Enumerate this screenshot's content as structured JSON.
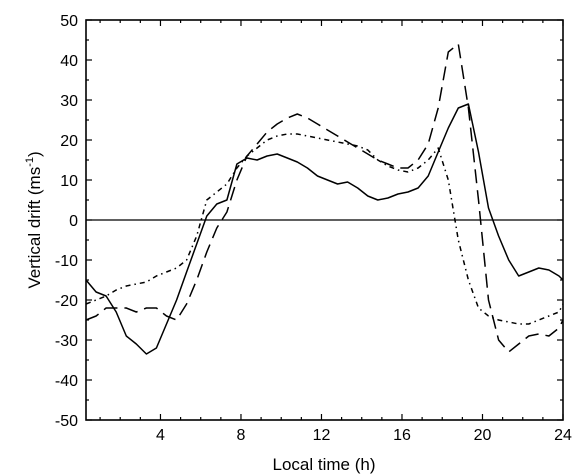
{
  "chart_data": {
    "type": "line",
    "xlabel": "Local time (h)",
    "ylabel_main": "Vertical drift (ms",
    "ylabel_sup": "-1",
    "ylabel_close": ")",
    "xlim": [
      0.3,
      24
    ],
    "ylim": [
      -50,
      50
    ],
    "x_ticks": [
      4,
      8,
      12,
      16,
      20,
      24
    ],
    "x_minor_step": 1,
    "y_ticks": [
      -50,
      -40,
      -30,
      -20,
      -10,
      0,
      10,
      20,
      30,
      40,
      50
    ],
    "y_minor_step": 5,
    "grid": false,
    "zero_line": true,
    "series": [
      {
        "style": "solid",
        "x": [
          0.3,
          0.8,
          1.3,
          1.8,
          2.3,
          2.8,
          3.3,
          3.8,
          4.3,
          4.8,
          5.3,
          5.8,
          6.3,
          6.8,
          7.3,
          7.8,
          8.3,
          8.8,
          9.3,
          9.8,
          10.3,
          10.8,
          11.3,
          11.8,
          12.3,
          12.8,
          13.3,
          13.8,
          14.3,
          14.8,
          15.3,
          15.8,
          16.3,
          16.8,
          17.3,
          17.8,
          18.3,
          18.8,
          19.3,
          19.8,
          20.3,
          20.8,
          21.3,
          21.8,
          22.3,
          22.8,
          23.3,
          23.8,
          24
        ],
        "y": [
          -15,
          -18,
          -19,
          -23,
          -29,
          -31,
          -33.5,
          -32,
          -26,
          -20,
          -13,
          -6,
          1,
          4,
          5,
          14,
          15.5,
          15,
          16,
          16.5,
          15.5,
          14.5,
          13,
          11,
          10,
          9,
          9.5,
          8,
          6,
          5,
          5.5,
          6.5,
          7,
          8,
          11,
          17,
          23,
          28,
          29,
          17,
          3,
          -4,
          -10,
          -14,
          -13,
          -12,
          -12.5,
          -14,
          -15
        ]
      },
      {
        "style": "dashed",
        "x": [
          0.3,
          0.8,
          1.3,
          1.8,
          2.3,
          2.8,
          3.3,
          3.8,
          4.3,
          4.8,
          5.3,
          5.8,
          6.3,
          6.8,
          7.3,
          7.8,
          8.3,
          8.8,
          9.3,
          9.8,
          10.3,
          10.8,
          11.3,
          11.8,
          12.3,
          12.8,
          13.3,
          13.8,
          14.3,
          14.8,
          15.3,
          15.8,
          16.3,
          16.8,
          17.3,
          17.8,
          18.3,
          18.8,
          19.3,
          19.8,
          20.3,
          20.8,
          21.3,
          21.8,
          22.3,
          22.8,
          23.3,
          23.8,
          24
        ],
        "y": [
          -25,
          -24,
          -22,
          -22,
          -22,
          -23,
          -22,
          -22,
          -24,
          -25,
          -21,
          -15,
          -8,
          -2,
          2,
          10,
          16,
          19,
          22,
          24,
          25.5,
          26.5,
          25.5,
          24,
          22.5,
          21,
          19.5,
          18,
          16.5,
          15,
          14,
          13,
          13,
          15,
          19,
          28,
          42,
          44,
          28,
          5,
          -20,
          -30,
          -33,
          -31,
          -29,
          -28.5,
          -29,
          -27,
          -25
        ]
      },
      {
        "style": "dash-dot",
        "x": [
          0.3,
          0.8,
          1.3,
          1.8,
          2.3,
          2.8,
          3.3,
          3.8,
          4.3,
          4.8,
          5.3,
          5.8,
          6.3,
          6.8,
          7.3,
          7.8,
          8.3,
          8.8,
          9.3,
          9.8,
          10.3,
          10.8,
          11.3,
          11.8,
          12.3,
          12.8,
          13.3,
          13.8,
          14.3,
          14.8,
          15.3,
          15.8,
          16.3,
          16.8,
          17.3,
          17.8,
          18.3,
          18.8,
          19.3,
          19.8,
          20.3,
          20.8,
          21.3,
          21.8,
          22.3,
          22.8,
          23.3,
          23.8,
          24
        ],
        "y": [
          -21,
          -20,
          -19,
          -17.5,
          -16.5,
          -16,
          -15.5,
          -14,
          -13,
          -12,
          -10,
          -4,
          5,
          7,
          9,
          13,
          16,
          18,
          20,
          21,
          21.5,
          21.5,
          21,
          20.5,
          20,
          19.5,
          19,
          18.5,
          17.5,
          15,
          13.5,
          12.5,
          12,
          13,
          15,
          18,
          10,
          -5,
          -15,
          -22,
          -24,
          -25,
          -25.5,
          -26,
          -26,
          -25,
          -24,
          -23,
          -21
        ]
      }
    ]
  }
}
